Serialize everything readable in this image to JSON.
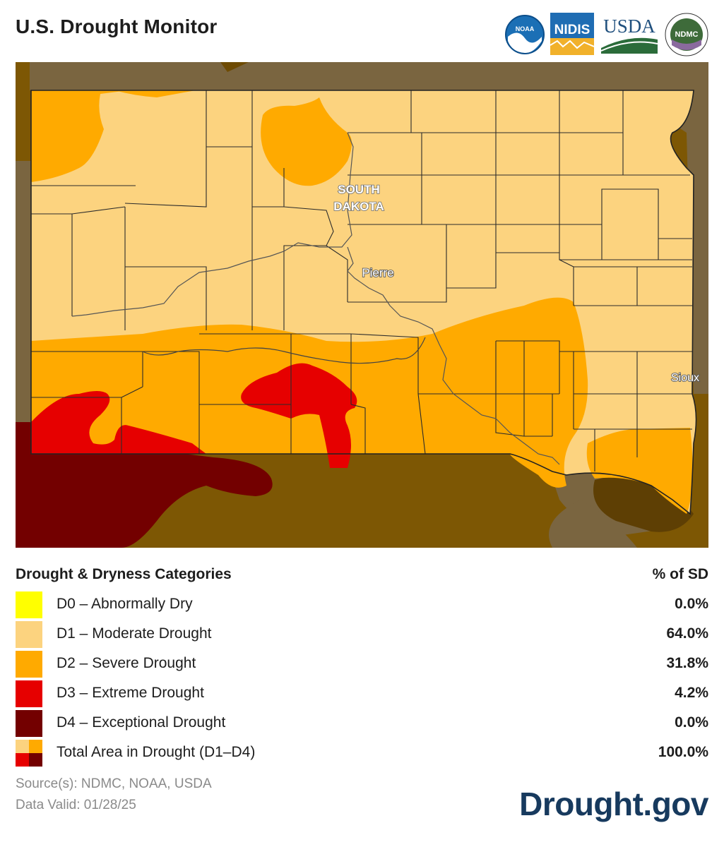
{
  "header": {
    "title": "U.S. Drought Monitor"
  },
  "logos": [
    {
      "name": "noaa-logo",
      "text": "NOAA"
    },
    {
      "name": "nidis-logo",
      "text": "NIDIS"
    },
    {
      "name": "usda-logo",
      "text": "USDA"
    },
    {
      "name": "ndmc-logo",
      "text": "NDMC"
    }
  ],
  "map": {
    "state_label_line1": "SOUTH",
    "state_label_line2": "DAKOTA",
    "city_pierre": "Pierre",
    "city_sioux": "Sioux"
  },
  "legend": {
    "heading": "Drought & Dryness Categories",
    "pct_heading": "% of SD",
    "rows": [
      {
        "label": "D0 – Abnormally Dry",
        "pct": "0.0%",
        "color": "#ffff00"
      },
      {
        "label": "D1 – Moderate Drought",
        "pct": "64.0%",
        "color": "#fcd37f"
      },
      {
        "label": "D2 – Severe Drought",
        "pct": "31.8%",
        "color": "#ffaa00"
      },
      {
        "label": "D3 – Extreme Drought",
        "pct": "4.2%",
        "color": "#e60000"
      },
      {
        "label": "D4 – Exceptional Drought",
        "pct": "0.0%",
        "color": "#730000"
      }
    ],
    "total": {
      "label": "Total Area in Drought (D1–D4)",
      "pct": "100.0%"
    }
  },
  "footer": {
    "sources": "Source(s): NDMC, NOAA, USDA",
    "valid": "Data Valid: 01/28/25",
    "brand": "Drought.gov"
  }
}
